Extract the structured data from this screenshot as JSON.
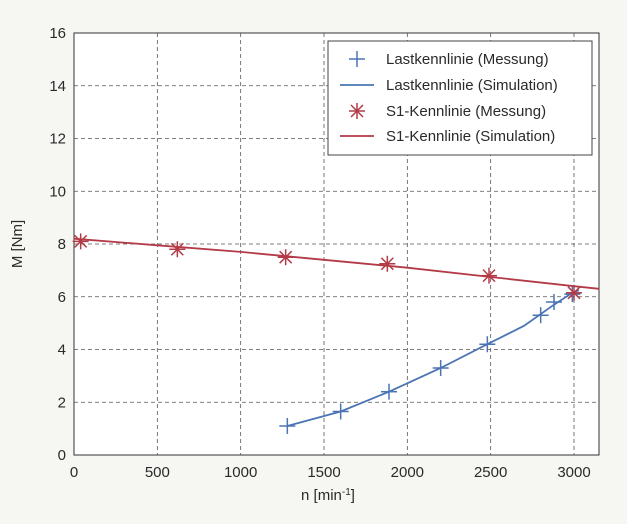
{
  "chart_data": {
    "type": "line",
    "xlabel": "n [min",
    "xlabel_sup": "-1",
    "xlabel_close": "]",
    "ylabel": "M [Nm]",
    "xlim": [
      0,
      3150
    ],
    "ylim": [
      0,
      16
    ],
    "x_ticks": [
      0,
      500,
      1000,
      1500,
      2000,
      2500,
      3000
    ],
    "y_ticks": [
      0,
      2,
      4,
      6,
      8,
      10,
      12,
      14,
      16
    ],
    "grid": true,
    "legend_position": "top-right",
    "series": [
      {
        "name": "Lastkennlinie (Messung)",
        "style": "markers",
        "marker": "plus",
        "color": "#4a74b4",
        "x": [
          1280,
          1600,
          1890,
          2200,
          2480,
          2800,
          2880,
          2990
        ],
        "y": [
          1.1,
          1.65,
          2.4,
          3.3,
          4.2,
          5.3,
          5.8,
          6.1
        ]
      },
      {
        "name": "Lastkennlinie (Simulation)",
        "style": "line",
        "color": "#4a74b4",
        "x": [
          1280,
          1600,
          1890,
          2200,
          2480,
          2700,
          2880,
          2990,
          3030
        ],
        "y": [
          1.1,
          1.65,
          2.4,
          3.3,
          4.2,
          4.9,
          5.7,
          6.15,
          6.25
        ]
      },
      {
        "name": "S1-Kennlinie (Messung)",
        "style": "markers",
        "marker": "star",
        "color": "#b33a46",
        "x": [
          40,
          620,
          1270,
          1880,
          2490,
          3000
        ],
        "y": [
          8.1,
          7.8,
          7.5,
          7.25,
          6.8,
          6.15
        ]
      },
      {
        "name": "S1-Kennlinie (Simulation)",
        "style": "line",
        "color": "#b33a46",
        "x": [
          0,
          500,
          1000,
          1500,
          2000,
          2500,
          3000,
          3150
        ],
        "y": [
          8.2,
          7.95,
          7.7,
          7.4,
          7.1,
          6.75,
          6.4,
          6.3
        ]
      }
    ]
  }
}
